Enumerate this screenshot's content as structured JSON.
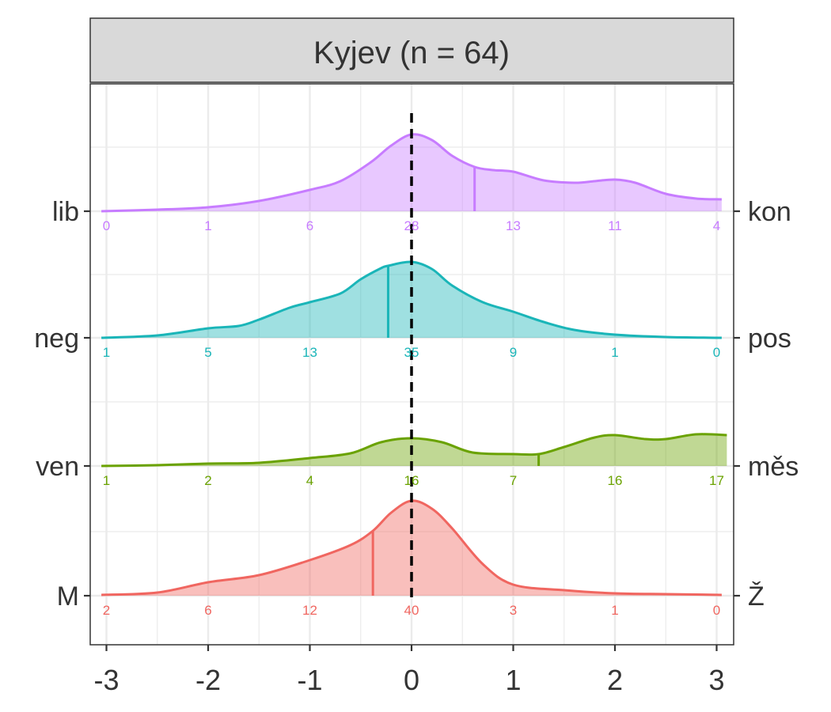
{
  "chart_data": {
    "type": "ridgeline-density",
    "facet_title": "Kyjev (n = 64)",
    "x_ticks": [
      -3,
      -2,
      -1,
      0,
      1,
      2,
      3
    ],
    "x_tick_labels": [
      "-3",
      "-2",
      "-1",
      "0",
      "1",
      "2",
      "3"
    ],
    "xlim": [
      -3.1,
      3.1
    ],
    "reference_line_x": 0,
    "grid": true,
    "count_positions_x": [
      -3,
      -2,
      -1,
      0,
      1,
      2,
      3
    ],
    "rows": [
      {
        "left_label": "lib",
        "right_label": "kon",
        "color": "#C77CFF",
        "mean": 0.62,
        "counts": [
          "0",
          "1",
          "6",
          "28",
          "13",
          "11",
          "4"
        ],
        "density": {
          "x": [
            -3.05,
            -2.5,
            -2.0,
            -1.5,
            -1.0,
            -0.7,
            -0.4,
            -0.2,
            0.0,
            0.2,
            0.4,
            0.62,
            0.8,
            1.0,
            1.3,
            1.6,
            1.8,
            2.0,
            2.2,
            2.5,
            2.8,
            3.05
          ],
          "y": [
            0.0,
            0.02,
            0.05,
            0.13,
            0.27,
            0.38,
            0.62,
            0.83,
            0.97,
            0.9,
            0.7,
            0.56,
            0.52,
            0.5,
            0.39,
            0.36,
            0.38,
            0.4,
            0.36,
            0.22,
            0.16,
            0.15
          ]
        }
      },
      {
        "left_label": "neg",
        "right_label": "pos",
        "color": "#1AB5B8",
        "mean": -0.23,
        "counts": [
          "1",
          "5",
          "13",
          "35",
          "9",
          "1",
          "0"
        ],
        "density": {
          "x": [
            -3.05,
            -2.5,
            -2.0,
            -1.7,
            -1.5,
            -1.2,
            -1.0,
            -0.7,
            -0.5,
            -0.3,
            -0.23,
            0.0,
            0.2,
            0.4,
            0.7,
            1.0,
            1.3,
            1.6,
            2.0,
            2.5,
            3.05
          ],
          "y": [
            0.0,
            0.03,
            0.12,
            0.15,
            0.23,
            0.38,
            0.45,
            0.56,
            0.74,
            0.88,
            0.91,
            0.96,
            0.87,
            0.66,
            0.45,
            0.33,
            0.2,
            0.1,
            0.04,
            0.01,
            0.0
          ]
        }
      },
      {
        "left_label": "ven",
        "right_label": "měs",
        "color": "#6AA200",
        "mean": 1.25,
        "counts": [
          "1",
          "2",
          "4",
          "16",
          "7",
          "16",
          "17"
        ],
        "density": {
          "x": [
            -3.05,
            -2.5,
            -2.0,
            -1.5,
            -1.0,
            -0.6,
            -0.3,
            0.0,
            0.3,
            0.6,
            1.0,
            1.25,
            1.5,
            1.8,
            2.0,
            2.3,
            2.5,
            2.8,
            3.1
          ],
          "y": [
            0.0,
            0.01,
            0.03,
            0.04,
            0.1,
            0.16,
            0.3,
            0.35,
            0.3,
            0.17,
            0.15,
            0.15,
            0.24,
            0.36,
            0.39,
            0.34,
            0.34,
            0.4,
            0.39
          ]
        }
      },
      {
        "left_label": "M",
        "right_label": "Ž",
        "color": "#F06660",
        "mean": -0.38,
        "counts": [
          "2",
          "6",
          "12",
          "40",
          "3",
          "1",
          "0"
        ],
        "density": {
          "x": [
            -3.05,
            -2.5,
            -2.0,
            -1.5,
            -1.0,
            -0.6,
            -0.38,
            -0.2,
            0.0,
            0.2,
            0.4,
            0.7,
            1.0,
            1.5,
            2.0,
            2.5,
            3.05
          ],
          "y": [
            0.01,
            0.04,
            0.17,
            0.26,
            0.45,
            0.64,
            0.82,
            1.05,
            1.2,
            1.1,
            0.85,
            0.4,
            0.14,
            0.07,
            0.03,
            0.02,
            0.01
          ]
        }
      }
    ]
  }
}
